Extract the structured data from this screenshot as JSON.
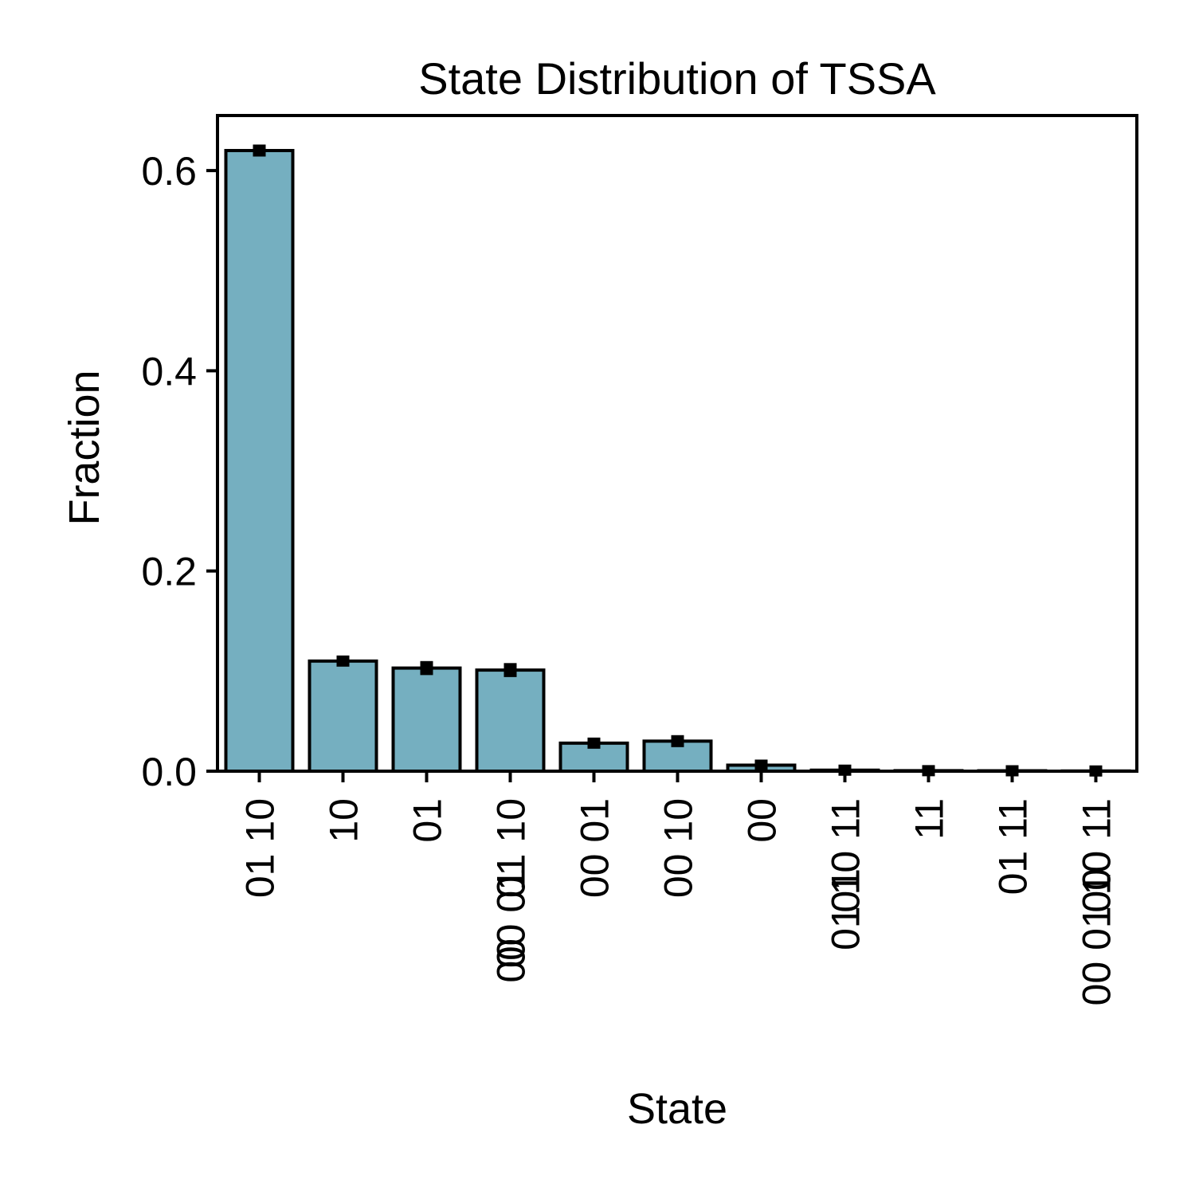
{
  "chart_data": {
    "type": "bar",
    "title": "State Distribution of TSSA",
    "xlabel": "State",
    "ylabel": "Fraction",
    "ylim": [
      0,
      0.655
    ],
    "yticks": [
      0.0,
      0.2,
      0.4,
      0.6
    ],
    "ytick_labels": [
      "0.0",
      "0.2",
      "0.4",
      "0.6"
    ],
    "categories": [
      [
        "01 10"
      ],
      [
        "10"
      ],
      [
        "01"
      ],
      [
        "01 10",
        "00 01"
      ],
      [
        "00 01"
      ],
      [
        "00 10"
      ],
      [
        "00"
      ],
      [
        "01 10 11"
      ],
      [
        "11"
      ],
      [
        "01 11"
      ],
      [
        "00 01 10 11"
      ]
    ],
    "category_lines": [
      [
        "01 10"
      ],
      [
        "10"
      ],
      [
        "01"
      ],
      [
        "01 10",
        "00 01",
        "00"
      ],
      [
        "00 01"
      ],
      [
        "00 10"
      ],
      [
        "00"
      ],
      [
        "01 10 11",
        "01"
      ],
      [
        "11"
      ],
      [
        "01 11"
      ],
      [
        "00 01 10 11",
        "00"
      ]
    ],
    "values": [
      0.62,
      0.11,
      0.103,
      0.101,
      0.028,
      0.03,
      0.006,
      0.001,
      0.0005,
      0.0004,
      0.0002
    ],
    "errors": [
      0.004,
      0.002,
      0.005,
      0.005,
      0.003,
      0.004,
      0.001,
      0.0005,
      0.0003,
      0.0003,
      0.0001
    ],
    "bar_color": "#75afc0",
    "edge_color": "#000000",
    "grid": false,
    "legend": "none"
  }
}
